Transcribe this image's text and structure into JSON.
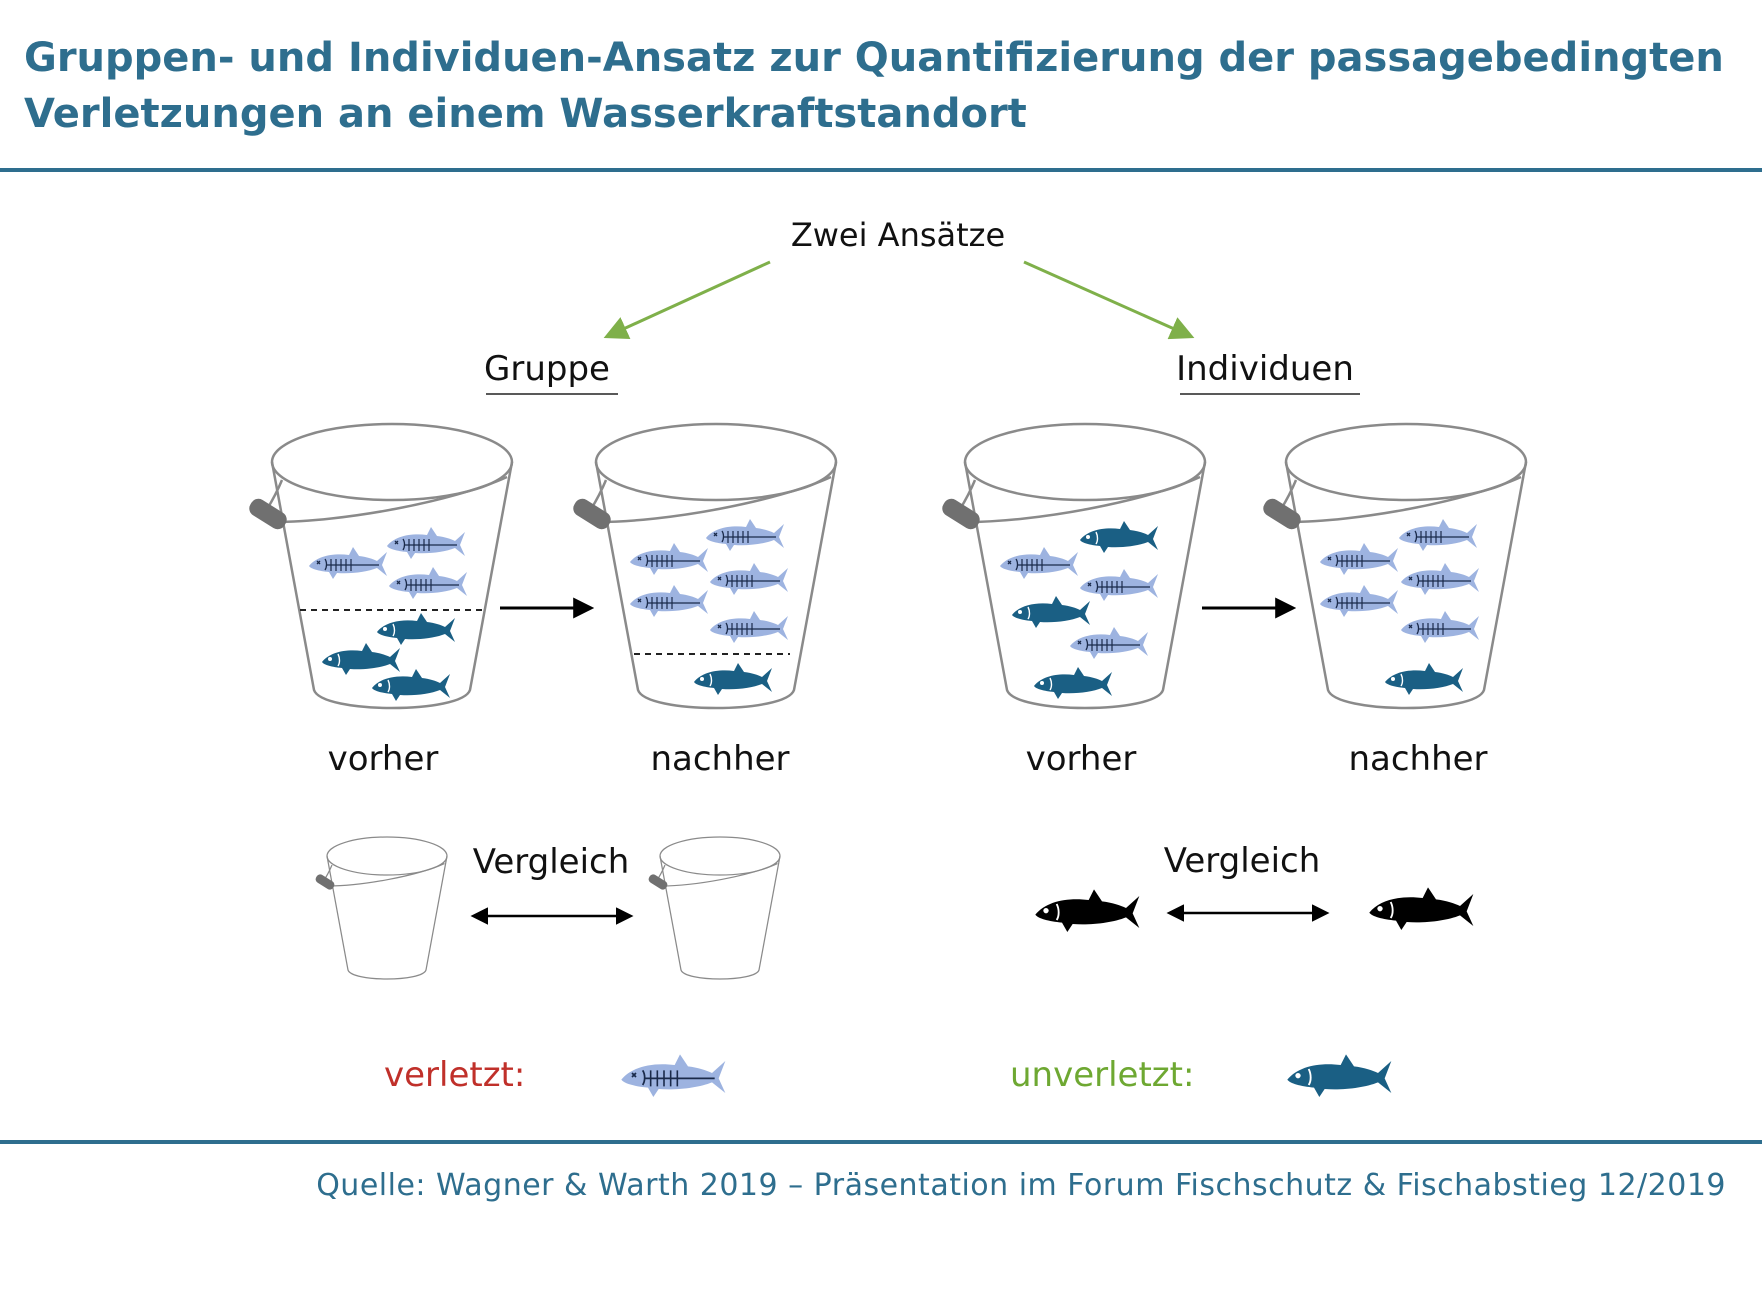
{
  "title_line1": "Gruppen- und Individuen-Ansatz zur Quantifizierung der passagebedingten",
  "title_line2": "Verletzungen an einem Wasserkraftstandort",
  "root_label": "Zwei Ansätze",
  "branches": [
    {
      "label": "Gruppe",
      "before": "vorher",
      "after": "nachher",
      "compare": "Vergleich"
    },
    {
      "label": "Individuen",
      "before": "vorher",
      "after": "nachher",
      "compare": "Vergleich"
    }
  ],
  "legend": {
    "injured_label": "verletzt:",
    "uninjured_label": "unverletzt:"
  },
  "colors": {
    "title": "#2e6e8e",
    "arrow_green": "#7fb04a",
    "fish_healthy": "#1a5f84",
    "fish_injured": "#9db3e0",
    "injured_text": "#c0302a",
    "uninjured_text": "#6ea832"
  },
  "source": "Quelle: Wagner & Warth 2019 – Präsentation im Forum Fischschutz & Fischabstieg 12/2019"
}
